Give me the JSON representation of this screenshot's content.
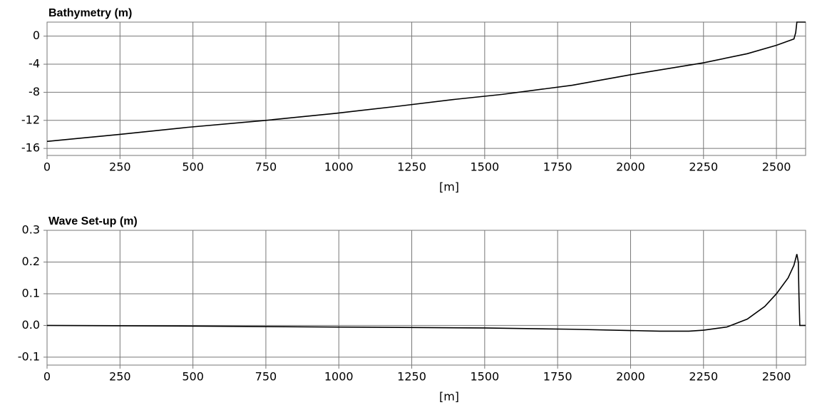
{
  "chart_data": [
    {
      "type": "line",
      "title": "Bathymetry (m)",
      "x_label": "[m]",
      "x": [
        0,
        250,
        480,
        750,
        990,
        1200,
        1400,
        1560,
        1800,
        2000,
        2250,
        2400,
        2500,
        2560,
        2566,
        2570,
        2600
      ],
      "series": [
        {
          "name": "Bathymetry",
          "color": "#000000",
          "values": [
            -15,
            -14,
            -13,
            -12,
            -11,
            -10,
            -9,
            -8.3,
            -7,
            -5.5,
            -3.8,
            -2.5,
            -1.3,
            -0.4,
            0.5,
            2,
            2
          ]
        }
      ],
      "xlim": [
        0,
        2600
      ],
      "ylim": [
        -17,
        2
      ],
      "xticks": [
        0,
        250,
        500,
        750,
        1000,
        1250,
        1500,
        1750,
        2000,
        2250,
        2500
      ],
      "yticks": [
        0,
        -4,
        -8,
        -12,
        -16
      ],
      "grid": true
    },
    {
      "type": "line",
      "title": "Wave Set-up (m)",
      "x_label": "[m]",
      "x": [
        0,
        500,
        1000,
        1500,
        1800,
        2100,
        2200,
        2250,
        2330,
        2400,
        2460,
        2500,
        2540,
        2560,
        2570,
        2575,
        2577,
        2580,
        2600
      ],
      "series": [
        {
          "name": "Wave Set-up",
          "color": "#000000",
          "values": [
            0,
            -0.002,
            -0.005,
            -0.008,
            -0.012,
            -0.018,
            -0.018,
            -0.015,
            -0.005,
            0.02,
            0.06,
            0.1,
            0.15,
            0.19,
            0.225,
            0.2,
            0.1,
            0,
            0
          ]
        }
      ],
      "xlim": [
        0,
        2600
      ],
      "ylim": [
        -0.125,
        0.3
      ],
      "xticks": [
        0,
        250,
        500,
        750,
        1000,
        1250,
        1500,
        1750,
        2000,
        2250,
        2500
      ],
      "yticks": [
        0.3,
        0.2,
        0.1,
        {
          "value": 0,
          "label": "0.0"
        },
        -0.1
      ],
      "grid": true
    }
  ]
}
